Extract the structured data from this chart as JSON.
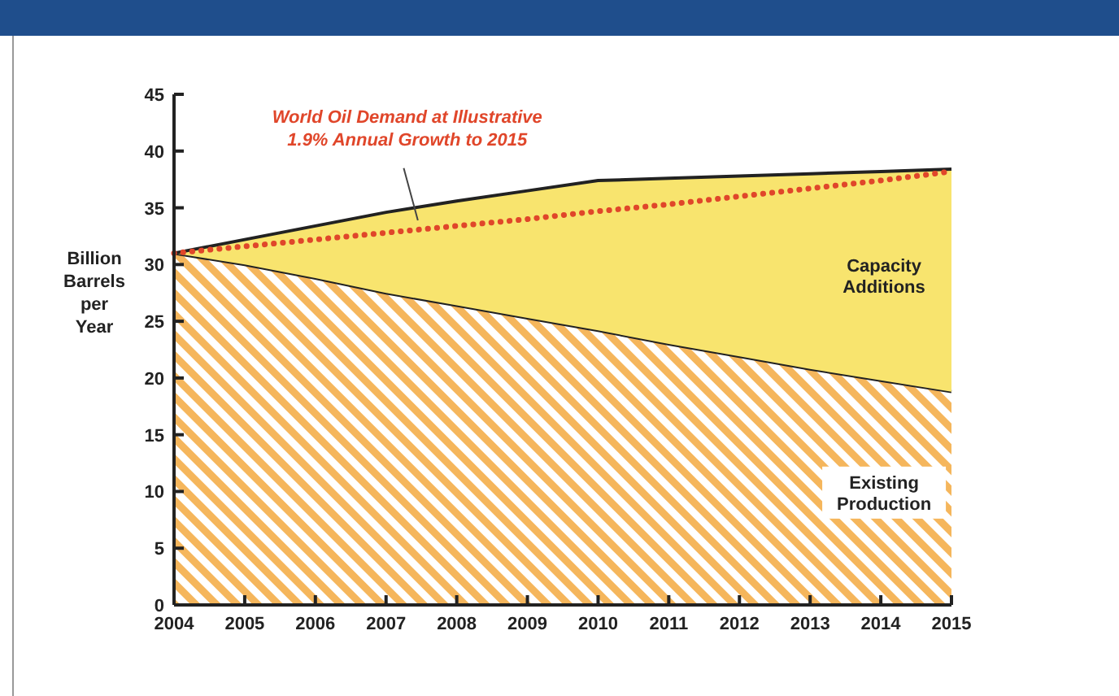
{
  "chart_data": {
    "type": "area",
    "stacked": true,
    "ylabel": "Billion Barrels per Year",
    "categories": [
      "2004",
      "2005",
      "2006",
      "2007",
      "2008",
      "2009",
      "2010",
      "2011",
      "2012",
      "2013",
      "2014",
      "2015"
    ],
    "ylim": [
      0,
      45
    ],
    "yticks": [
      0,
      5,
      10,
      15,
      20,
      25,
      30,
      35,
      40,
      45
    ],
    "series": [
      {
        "name": "Existing Production",
        "color": "#f5b65c",
        "values": [
          31,
          30,
          28.8,
          27.5,
          26.4,
          25.3,
          24.2,
          23,
          21.9,
          20.8,
          19.8,
          18.8
        ]
      },
      {
        "name": "Capacity Additions",
        "color": "#f8e46e",
        "values": [
          0,
          2.2,
          4.6,
          7.1,
          9.2,
          11.2,
          13.2,
          14.6,
          15.9,
          17.2,
          18.4,
          19.6
        ]
      },
      {
        "name": "World Oil Demand at Illustrative 1.9% Annual Growth to 2015",
        "type": "line",
        "color": "#e0462a",
        "line_style": "dotted",
        "values": [
          31,
          31.6,
          32.2,
          32.8,
          33.4,
          34,
          34.7,
          35.3,
          36,
          36.7,
          37.4,
          38.2
        ]
      }
    ]
  }
}
